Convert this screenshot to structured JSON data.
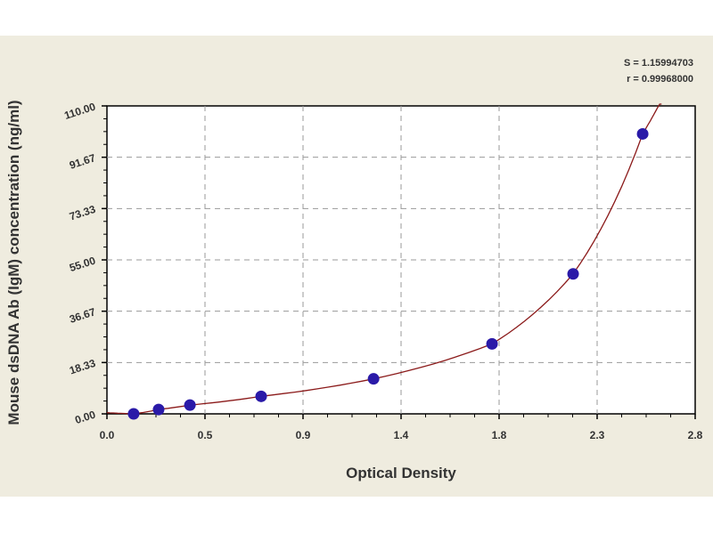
{
  "chart_data": {
    "type": "scatter",
    "xlabel": "Optical Density",
    "ylabel": "Mouse dsDNA Ab (IgM) concentration (ng/ml)",
    "xlim": [
      0,
      2.8
    ],
    "ylim": [
      0,
      110
    ],
    "x_ticks": [
      "0.0",
      "0.5",
      "0.9",
      "1.4",
      "1.8",
      "2.3",
      "2.8"
    ],
    "y_ticks": [
      "0.00",
      "18.33",
      "36.67",
      "55.00",
      "73.33",
      "91.67",
      "110.00"
    ],
    "grid": true,
    "stats": {
      "s": "S = 1.15994703",
      "r": "r = 0.99968000"
    },
    "points": {
      "x": [
        0.127,
        0.246,
        0.395,
        0.734,
        1.269,
        1.833,
        2.219,
        2.55
      ],
      "y": [
        0,
        1.56,
        3.13,
        6.25,
        12.5,
        25,
        50,
        100
      ]
    },
    "colors": {
      "points": "#2a1aa8",
      "curve": "#8b1a1a",
      "background": "#efecdf",
      "plot": "#ffffff"
    }
  }
}
